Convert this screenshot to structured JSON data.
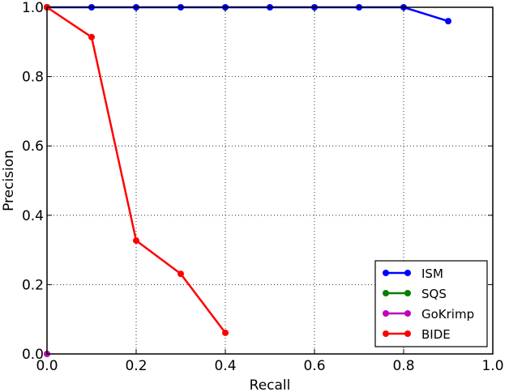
{
  "chart_data": {
    "type": "line",
    "title": "",
    "xlabel": "Recall",
    "ylabel": "Precision",
    "xlim": [
      0.0,
      1.0
    ],
    "ylim": [
      0.0,
      1.0
    ],
    "grid": true,
    "legend_position": "lower right",
    "xticks": [
      "0.0",
      "0.2",
      "0.4",
      "0.6",
      "0.8",
      "1.0"
    ],
    "yticks": [
      "0.0",
      "0.2",
      "0.4",
      "0.6",
      "0.8",
      "1.0"
    ],
    "series": [
      {
        "name": "ISM",
        "color": "#0000ff",
        "x": [
          0.0,
          0.1,
          0.2,
          0.3,
          0.4,
          0.5,
          0.6,
          0.7,
          0.8,
          0.9
        ],
        "y": [
          1.0,
          1.0,
          1.0,
          1.0,
          1.0,
          1.0,
          1.0,
          1.0,
          1.0,
          0.96
        ]
      },
      {
        "name": "SQS",
        "color": "#008000",
        "x": [
          0.0
        ],
        "y": [
          1.0
        ]
      },
      {
        "name": "GoKrimp",
        "color": "#bf00bf",
        "x": [
          0.0
        ],
        "y": [
          0.0
        ]
      },
      {
        "name": "BIDE",
        "color": "#ff0000",
        "x": [
          0.0,
          0.1,
          0.2,
          0.3,
          0.4
        ],
        "y": [
          1.0,
          0.914,
          0.327,
          0.231,
          0.061
        ]
      }
    ]
  }
}
